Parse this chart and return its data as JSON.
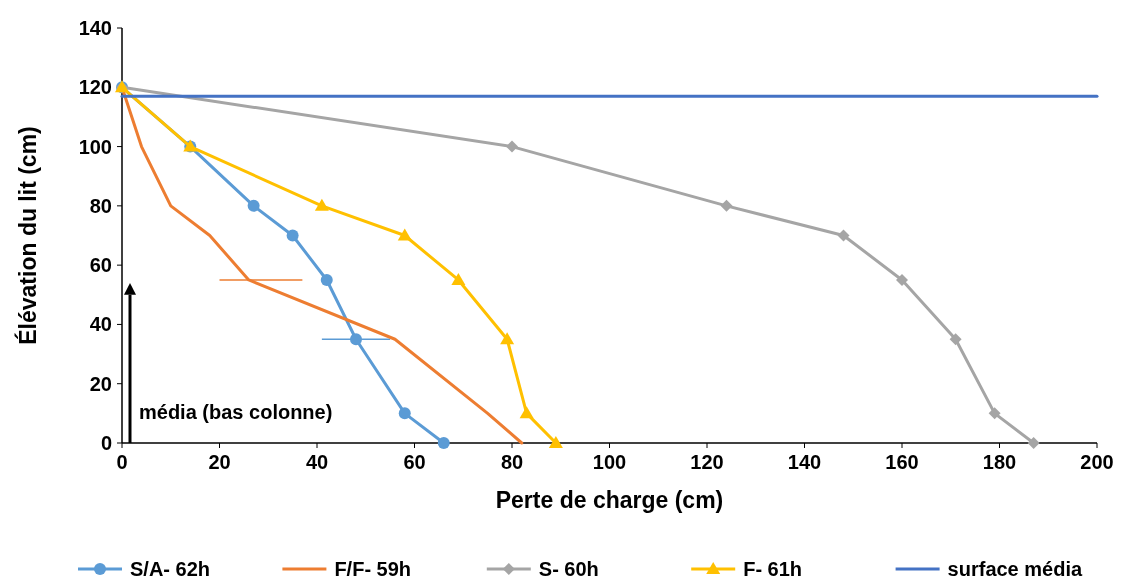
{
  "chart_data": {
    "type": "line",
    "xlabel": "Perte de charge (cm)",
    "ylabel": "Élévation du lit  (cm)",
    "xlim": [
      0,
      200
    ],
    "xticks": [
      0,
      20,
      40,
      60,
      80,
      100,
      120,
      140,
      160,
      180,
      200
    ],
    "ylim": [
      0,
      140
    ],
    "yticks": [
      0,
      20,
      40,
      60,
      80,
      100,
      120,
      140
    ],
    "legend": "bottom",
    "annotations": [
      "média (bas colonne)"
    ],
    "series": [
      {
        "name": "S/A- 62h",
        "color": "#5b9bd5",
        "marker": "circle",
        "x": [
          0,
          14,
          27,
          35,
          42,
          48,
          58,
          66
        ],
        "values": [
          120,
          100,
          80,
          70,
          55,
          35,
          10,
          0
        ],
        "xerrors": [
          null,
          null,
          null,
          null,
          null,
          [
            41,
            55
          ],
          null,
          null
        ]
      },
      {
        "name": "F/F- 59h",
        "color": "#ed7d31",
        "marker": "none",
        "x": [
          0,
          4,
          10,
          18,
          26,
          56,
          75,
          82
        ],
        "values": [
          120,
          100,
          80,
          70,
          55,
          35,
          10,
          0
        ],
        "xerrors": [
          null,
          null,
          null,
          null,
          [
            20,
            37
          ],
          null,
          null,
          null
        ]
      },
      {
        "name": "S- 60h",
        "color": "#a5a5a5",
        "marker": "diamond",
        "x": [
          0,
          80,
          124,
          148,
          160,
          171,
          179,
          187
        ],
        "values": [
          120,
          100,
          80,
          70,
          55,
          35,
          10,
          0
        ]
      },
      {
        "name": "F- 61h",
        "color": "#ffc000",
        "marker": "triangle",
        "x": [
          0,
          14,
          41,
          58,
          69,
          79,
          83,
          89
        ],
        "values": [
          120,
          100,
          80,
          70,
          55,
          35,
          10,
          0
        ]
      },
      {
        "name": "surface média",
        "color": "#4472c4",
        "marker": "none",
        "x": [
          0,
          200
        ],
        "values": [
          117,
          117
        ]
      }
    ]
  }
}
